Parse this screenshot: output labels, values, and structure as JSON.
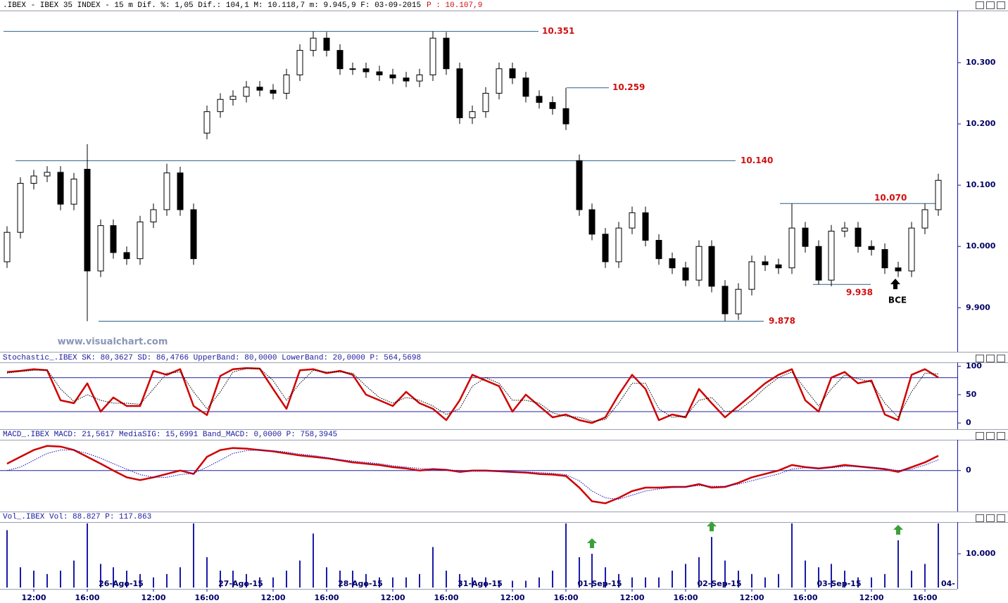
{
  "chart_data": [
    {
      "type": "candlestick",
      "title": ".IBEX - IBEX 35 INDEX -  15 m Dif. %: 1,05 Dif.: 104,1 M: 10.118,7 m: 9.945,9 F: 03-09-2015",
      "title_price": "P : 10.107,9",
      "watermark": "www.visualchart.com",
      "annotation": "BCE",
      "ylim": [
        9828,
        10385
      ],
      "yticks": [
        {
          "value": 9900,
          "label": "9.900"
        },
        {
          "value": 10000,
          "label": "10.000"
        },
        {
          "value": 10100,
          "label": "10.100"
        },
        {
          "value": 10200,
          "label": "10.200"
        },
        {
          "value": 10300,
          "label": "10.300"
        }
      ],
      "up_color": "#ffffff",
      "down_color": "#000000",
      "level_color": "#2b5f8a",
      "level_label_color": "#d01010",
      "levels": [
        {
          "value": 10351,
          "label": "10.351"
        },
        {
          "value": 10259,
          "label": "10.259"
        },
        {
          "value": 10140,
          "label": "10.140"
        },
        {
          "value": 10070,
          "label": "10.070"
        },
        {
          "value": 9938,
          "label": "9.938"
        },
        {
          "value": 9878,
          "label": "9.878"
        }
      ],
      "open": [
        9975,
        10023,
        10103,
        10115,
        10121,
        10069,
        10126,
        9960,
        10034,
        9990,
        9980,
        10040,
        10060,
        10120,
        10060,
        10185,
        10220,
        10240,
        10245,
        10260,
        10255,
        10250,
        10280,
        10320,
        10340,
        10320,
        10290,
        10290,
        10285,
        10280,
        10275,
        10270,
        10280,
        10340,
        10290,
        10210,
        10220,
        10250,
        10290,
        10275,
        10245,
        10235,
        10225,
        10140,
        10060,
        10020,
        9975,
        10030,
        10055,
        10010,
        9980,
        9965,
        9945,
        10000,
        9935,
        9890,
        9930,
        9975,
        9970,
        9965,
        10030,
        10000,
        9945,
        10025,
        10030,
        10000,
        9995,
        9965,
        9960,
        10030,
        10060
      ],
      "high": [
        10033,
        10113,
        10125,
        10131,
        10131,
        10120,
        10167,
        10044,
        10044,
        10000,
        10050,
        10070,
        10135,
        10130,
        10070,
        10230,
        10250,
        10255,
        10270,
        10270,
        10265,
        10290,
        10330,
        10351,
        10350,
        10330,
        10300,
        10300,
        10295,
        10290,
        10285,
        10290,
        10351,
        10350,
        10300,
        10230,
        10260,
        10300,
        10300,
        10285,
        10255,
        10245,
        10259,
        10150,
        10070,
        10030,
        10040,
        10065,
        10065,
        10020,
        9990,
        9975,
        10010,
        10010,
        9945,
        9940,
        9985,
        9985,
        9980,
        10070,
        10040,
        10010,
        10035,
        10040,
        10040,
        10010,
        10005,
        9975,
        10040,
        10070,
        10118.7
      ],
      "low": [
        9965,
        10013,
        10093,
        10105,
        10059,
        10059,
        9878,
        9950,
        9980,
        9970,
        9970,
        10030,
        10050,
        10050,
        9970,
        10175,
        10210,
        10230,
        10235,
        10245,
        10240,
        10240,
        10270,
        10310,
        10310,
        10280,
        10280,
        10275,
        10270,
        10265,
        10260,
        10260,
        10270,
        10280,
        10200,
        10200,
        10210,
        10240,
        10265,
        10235,
        10225,
        10215,
        10190,
        10050,
        10010,
        9965,
        9965,
        10020,
        10000,
        9970,
        9955,
        9935,
        9935,
        9925,
        9878,
        9880,
        9920,
        9960,
        9955,
        9955,
        9990,
        9938,
        9935,
        10015,
        9990,
        9985,
        9955,
        9950,
        9950,
        10020,
        10050
      ],
      "close": [
        10023,
        10103,
        10115,
        10121,
        10069,
        10110,
        9960,
        10034,
        9990,
        9980,
        10040,
        10060,
        10120,
        10060,
        9980,
        10220,
        10240,
        10245,
        10260,
        10255,
        10250,
        10280,
        10320,
        10340,
        10320,
        10290,
        10290,
        10285,
        10280,
        10275,
        10270,
        10280,
        10340,
        10290,
        10210,
        10220,
        10250,
        10290,
        10275,
        10245,
        10235,
        10225,
        10200,
        10060,
        10020,
        9975,
        10030,
        10055,
        10010,
        9980,
        9965,
        9945,
        10000,
        9935,
        9890,
        9930,
        9975,
        9970,
        9965,
        10030,
        10000,
        9945,
        10025,
        10030,
        10000,
        9995,
        9965,
        9960,
        10030,
        10060,
        10107.9
      ]
    },
    {
      "type": "line",
      "title": "Stochastic_.IBEX SK: 80,3627 SD: 86,4766 UpperBand: 80,0000 LowerBand: 20,0000 P: 564,5698",
      "ylim": [
        -11,
        107
      ],
      "yticks": [
        0,
        50,
        100
      ],
      "bands": [
        80,
        20
      ],
      "band_color": "#2020a0",
      "series": [
        {
          "name": "SK",
          "color": "#d00000",
          "style": "solid",
          "values": [
            90,
            92,
            95,
            93,
            40,
            35,
            70,
            20,
            45,
            30,
            30,
            92,
            85,
            95,
            30,
            14,
            83,
            95,
            97,
            96,
            60,
            25,
            93,
            95,
            88,
            92,
            85,
            50,
            40,
            30,
            55,
            35,
            25,
            5,
            40,
            85,
            75,
            65,
            20,
            50,
            30,
            10,
            15,
            5,
            0,
            10,
            50,
            85,
            60,
            5,
            15,
            10,
            60,
            35,
            10,
            30,
            50,
            70,
            85,
            95,
            40,
            20,
            80,
            90,
            70,
            75,
            15,
            5,
            85,
            95,
            80.3627
          ]
        },
        {
          "name": "SD",
          "color": "#000000",
          "style": "dotted",
          "values": [
            88,
            91,
            93,
            94,
            60,
            38,
            50,
            40,
            35,
            35,
            33,
            60,
            88,
            90,
            55,
            25,
            55,
            90,
            96,
            96,
            75,
            40,
            70,
            93,
            90,
            90,
            88,
            65,
            45,
            35,
            45,
            40,
            30,
            15,
            25,
            65,
            80,
            70,
            40,
            40,
            35,
            18,
            12,
            10,
            3,
            6,
            35,
            70,
            70,
            25,
            10,
            12,
            40,
            45,
            20,
            22,
            40,
            62,
            80,
            90,
            60,
            30,
            60,
            85,
            78,
            72,
            35,
            10,
            55,
            88,
            86.4766
          ]
        }
      ]
    },
    {
      "type": "line",
      "title": "MACD_.IBEX MACD: 21,5617 MediaSIG: 15,6991 Band_MACD: 0,0000 P: 758,3945",
      "ylim": [
        -60,
        45
      ],
      "yticks": [
        0
      ],
      "bands": [
        0
      ],
      "band_color": "#2020a0",
      "series": [
        {
          "name": "MACD",
          "color": "#d00000",
          "style": "solid",
          "values": [
            10,
            20,
            30,
            36,
            35,
            30,
            20,
            10,
            0,
            -10,
            -14,
            -10,
            -5,
            0,
            -5,
            20,
            30,
            33,
            32,
            30,
            28,
            25,
            22,
            20,
            18,
            15,
            12,
            10,
            8,
            5,
            3,
            0,
            2,
            1,
            -2,
            0,
            0,
            -1,
            -2,
            -3,
            -5,
            -6,
            -8,
            -25,
            -45,
            -48,
            -40,
            -30,
            -25,
            -25,
            -24,
            -24,
            -20,
            -25,
            -24,
            -18,
            -10,
            -5,
            0,
            8,
            5,
            3,
            5,
            8,
            6,
            4,
            2,
            -2,
            5,
            12,
            21.5617
          ]
        },
        {
          "name": "MediaSIG",
          "color": "#1010c0",
          "style": "dotted",
          "values": [
            0,
            5,
            15,
            25,
            30,
            30,
            25,
            18,
            10,
            2,
            -6,
            -10,
            -10,
            -6,
            -4,
            5,
            15,
            25,
            29,
            30,
            29,
            27,
            24,
            22,
            19,
            16,
            14,
            12,
            10,
            7,
            5,
            3,
            2,
            1,
            0,
            -1,
            -1,
            -1,
            -2,
            -2,
            -3,
            -4,
            -6,
            -15,
            -30,
            -40,
            -42,
            -36,
            -30,
            -27,
            -25,
            -24,
            -22,
            -23,
            -23,
            -20,
            -15,
            -10,
            -5,
            2,
            4,
            3,
            4,
            6,
            6,
            5,
            3,
            0,
            2,
            8,
            15.6991
          ]
        }
      ]
    },
    {
      "type": "bar",
      "title": "Vol_.IBEX Vol: 88.827 P: 117.863",
      "ylim": [
        0,
        19400
      ],
      "yticks": [
        {
          "value": 10000,
          "label": "10.000"
        }
      ],
      "color": "#1a1aa8",
      "signal_color": "#3aa03a",
      "categories": [
        null,
        null,
        "12:00",
        null,
        null,
        null,
        "16:00",
        null,
        null,
        null,
        null,
        "12:00",
        null,
        null,
        null,
        "16:00",
        null,
        null,
        null,
        null,
        "12:00",
        null,
        null,
        null,
        "16:00",
        null,
        null,
        null,
        null,
        "12:00",
        null,
        null,
        null,
        "16:00",
        null,
        null,
        null,
        null,
        "12:00",
        null,
        null,
        null,
        "16:00",
        null,
        null,
        null,
        null,
        "12:00",
        null,
        null,
        null,
        "16:00",
        null,
        null,
        null,
        null,
        "12:00",
        null,
        null,
        null,
        "16:00",
        null,
        null,
        null,
        null,
        "12:00",
        null,
        null,
        null,
        "16:00",
        null
      ],
      "dates": [
        null,
        null,
        null,
        null,
        null,
        null,
        null,
        null,
        "26-Ago-15",
        null,
        null,
        null,
        null,
        null,
        null,
        null,
        null,
        "27-Ago-15",
        null,
        null,
        null,
        null,
        null,
        null,
        null,
        null,
        "28-Ago-15",
        null,
        null,
        null,
        null,
        null,
        null,
        null,
        null,
        "31-Ago-15",
        null,
        null,
        null,
        null,
        null,
        null,
        null,
        null,
        "01-Sep-15",
        null,
        null,
        null,
        null,
        null,
        null,
        null,
        null,
        "02-Sep-15",
        null,
        null,
        null,
        null,
        null,
        null,
        null,
        null,
        "03-Sep-15",
        null,
        null,
        null,
        null,
        null,
        null,
        null,
        null
      ],
      "dates_end": "04-",
      "values": [
        17000,
        6000,
        5000,
        4000,
        5000,
        8000,
        19000,
        7000,
        6000,
        5000,
        4000,
        3000,
        4000,
        6000,
        19000,
        9000,
        5000,
        5000,
        4000,
        3000,
        3000,
        5000,
        8000,
        16000,
        6000,
        5000,
        5000,
        4000,
        3000,
        3000,
        3000,
        4000,
        12000,
        5000,
        4000,
        3000,
        3000,
        2000,
        2000,
        2000,
        3000,
        5000,
        19000,
        9000,
        10000,
        6000,
        4000,
        3000,
        3000,
        3000,
        5000,
        7000,
        9000,
        15000,
        8000,
        5000,
        4000,
        3000,
        4000,
        19000,
        8000,
        6000,
        7000,
        5000,
        3000,
        3000,
        4000,
        14000,
        5000,
        7000,
        19000
      ]
    }
  ]
}
